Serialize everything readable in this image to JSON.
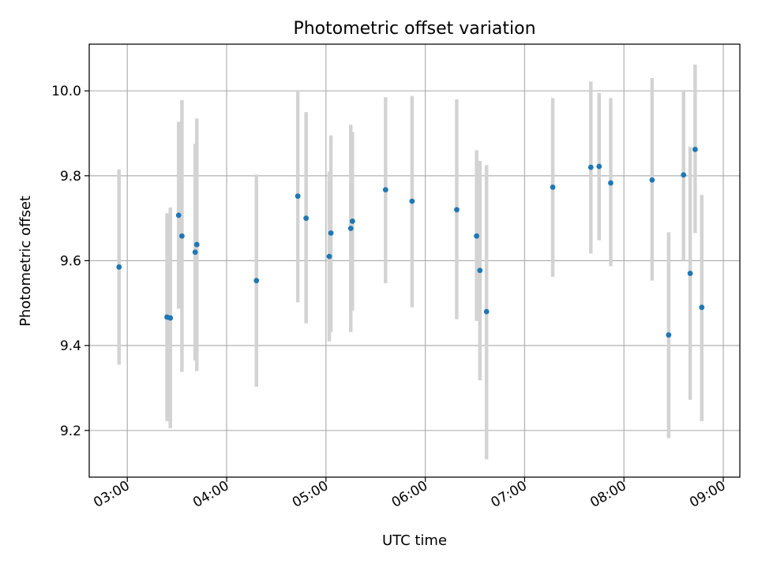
{
  "chart_data": {
    "type": "scatter",
    "title": "Photometric offset variation",
    "xlabel": "UTC time",
    "ylabel": "Photometric offset",
    "grid": true,
    "x_ticks": [
      "03:00",
      "04:00",
      "05:00",
      "06:00",
      "07:00",
      "08:00",
      "09:00"
    ],
    "y_ticks": [
      "9.2",
      "9.4",
      "9.6",
      "9.8",
      "10.0"
    ],
    "xlim": [
      "02:37",
      "09:10"
    ],
    "ylim": [
      9.09,
      10.11
    ],
    "colors": {
      "marker": "#1f77b4",
      "errorbar": "#d3d3d3",
      "grid": "#b0b0b0"
    },
    "points": [
      {
        "x": "02:55",
        "y": 9.585,
        "yerr_low": 9.355,
        "yerr_high": 9.815
      },
      {
        "x": "03:24",
        "y": 9.467,
        "yerr_low": 9.222,
        "yerr_high": 9.712
      },
      {
        "x": "03:26",
        "y": 9.465,
        "yerr_low": 9.205,
        "yerr_high": 9.725
      },
      {
        "x": "03:31",
        "y": 9.707,
        "yerr_low": 9.487,
        "yerr_high": 9.927
      },
      {
        "x": "03:33",
        "y": 9.658,
        "yerr_low": 9.338,
        "yerr_high": 9.978
      },
      {
        "x": "03:41",
        "y": 9.62,
        "yerr_low": 9.365,
        "yerr_high": 9.875
      },
      {
        "x": "03:42",
        "y": 9.638,
        "yerr_low": 9.34,
        "yerr_high": 9.935
      },
      {
        "x": "04:18",
        "y": 9.553,
        "yerr_low": 9.303,
        "yerr_high": 9.803
      },
      {
        "x": "04:43",
        "y": 9.752,
        "yerr_low": 9.502,
        "yerr_high": 10.002
      },
      {
        "x": "04:48",
        "y": 9.7,
        "yerr_low": 9.452,
        "yerr_high": 9.95
      },
      {
        "x": "05:02",
        "y": 9.61,
        "yerr_low": 9.41,
        "yerr_high": 9.81
      },
      {
        "x": "05:03",
        "y": 9.665,
        "yerr_low": 9.432,
        "yerr_high": 9.895
      },
      {
        "x": "05:15",
        "y": 9.676,
        "yerr_low": 9.432,
        "yerr_high": 9.92
      },
      {
        "x": "05:16",
        "y": 9.693,
        "yerr_low": 9.482,
        "yerr_high": 9.903
      },
      {
        "x": "05:36",
        "y": 9.767,
        "yerr_low": 9.547,
        "yerr_high": 9.985
      },
      {
        "x": "05:52",
        "y": 9.74,
        "yerr_low": 9.49,
        "yerr_high": 9.988
      },
      {
        "x": "06:19",
        "y": 9.72,
        "yerr_low": 9.462,
        "yerr_high": 9.98
      },
      {
        "x": "06:31",
        "y": 9.658,
        "yerr_low": 9.458,
        "yerr_high": 9.86
      },
      {
        "x": "06:33",
        "y": 9.577,
        "yerr_low": 9.318,
        "yerr_high": 9.835
      },
      {
        "x": "06:37",
        "y": 9.48,
        "yerr_low": 9.132,
        "yerr_high": 9.825
      },
      {
        "x": "07:17",
        "y": 9.773,
        "yerr_low": 9.562,
        "yerr_high": 9.983
      },
      {
        "x": "07:40",
        "y": 9.82,
        "yerr_low": 9.617,
        "yerr_high": 10.022
      },
      {
        "x": "07:45",
        "y": 9.822,
        "yerr_low": 9.648,
        "yerr_high": 9.995
      },
      {
        "x": "07:52",
        "y": 9.783,
        "yerr_low": 9.587,
        "yerr_high": 9.983
      },
      {
        "x": "08:17",
        "y": 9.79,
        "yerr_low": 9.553,
        "yerr_high": 10.03
      },
      {
        "x": "08:27",
        "y": 9.425,
        "yerr_low": 9.182,
        "yerr_high": 9.667
      },
      {
        "x": "08:36",
        "y": 9.802,
        "yerr_low": 9.6,
        "yerr_high": 10.002
      },
      {
        "x": "08:40",
        "y": 9.57,
        "yerr_low": 9.272,
        "yerr_high": 9.868
      },
      {
        "x": "08:43",
        "y": 9.862,
        "yerr_low": 9.665,
        "yerr_high": 10.062
      },
      {
        "x": "08:47",
        "y": 9.49,
        "yerr_low": 9.222,
        "yerr_high": 9.755
      }
    ]
  }
}
